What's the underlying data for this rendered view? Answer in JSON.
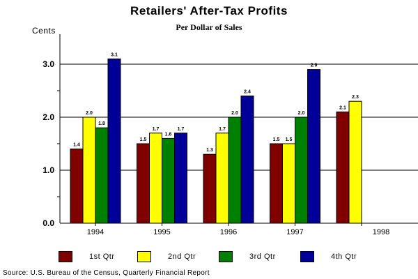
{
  "chart_data": {
    "type": "bar",
    "title": "Retailers' After-Tax Profits",
    "subtitle": "Per Dollar of Sales",
    "ylabel": "Cents",
    "xlabel": "",
    "ylim": [
      0,
      3.5
    ],
    "yticks": [
      "0.0",
      "1.0",
      "2.0",
      "3.0"
    ],
    "grid": true,
    "legend_position": "bottom",
    "categories": [
      "1994",
      "1995",
      "1996",
      "1997",
      "1998"
    ],
    "series": [
      {
        "name": "1st Qtr",
        "color": "#800000",
        "values": [
          1.4,
          1.5,
          1.3,
          1.5,
          2.1
        ],
        "labels": [
          "1.4",
          "1.5",
          "1.3",
          "1.5",
          "2.1"
        ]
      },
      {
        "name": "2nd Qtr",
        "color": "#ffff00",
        "values": [
          2.0,
          1.7,
          1.7,
          1.5,
          2.3
        ],
        "labels": [
          "2.0",
          "1.7",
          "1.7",
          "1.5",
          "2.3"
        ]
      },
      {
        "name": "3rd Qtr",
        "color": "#008000",
        "values": [
          1.8,
          1.6,
          2.0,
          2.0,
          null
        ],
        "labels": [
          "1.8",
          "1.6",
          "2.0",
          "2.0",
          null
        ]
      },
      {
        "name": "4th Qtr",
        "color": "#000099",
        "values": [
          3.1,
          1.7,
          2.4,
          2.9,
          null
        ],
        "labels": [
          "3.1",
          "1.7",
          "2.4",
          "2.9",
          null
        ]
      }
    ]
  },
  "source": "Source: U.S. Bureau of the Census, Quarterly Financial Report"
}
